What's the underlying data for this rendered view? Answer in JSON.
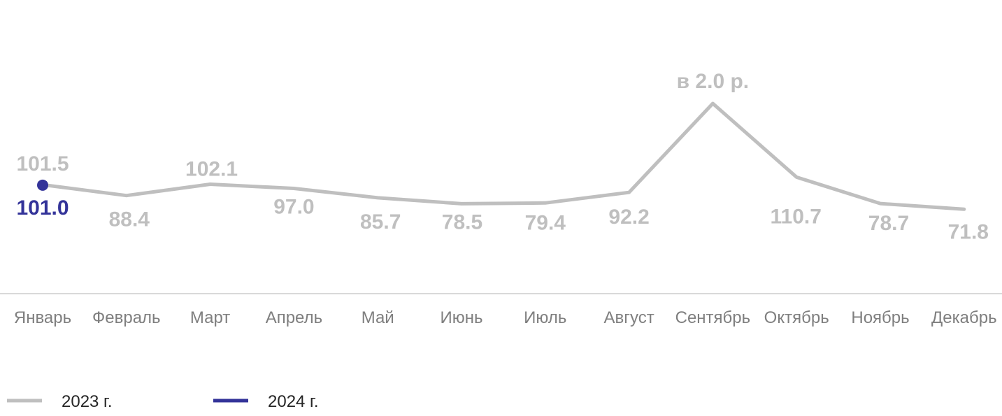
{
  "chart_data": {
    "type": "line",
    "title": "",
    "xlabel": "",
    "ylabel": "",
    "categories": [
      "Январь",
      "Февраль",
      "Март",
      "Апрель",
      "Май",
      "Июнь",
      "Июль",
      "Август",
      "Сентябрь",
      "Октябрь",
      "Ноябрь",
      "Декабрь"
    ],
    "series": [
      {
        "name": "2023 г.",
        "color": "#bfbfbf",
        "values": [
          101.5,
          88.4,
          102.1,
          97.0,
          85.7,
          78.5,
          79.4,
          92.2,
          200.0,
          110.7,
          78.7,
          71.8
        ],
        "labels": [
          "101.5",
          "88.4",
          "102.1",
          "97.0",
          "85.7",
          "78.5",
          "79.4",
          "92.2",
          "в 2.0 р.",
          "110.7",
          "78.7",
          "71.8"
        ]
      },
      {
        "name": "2024 г.",
        "color": "#333399",
        "values": [
          101.0,
          null,
          null,
          null,
          null,
          null,
          null,
          null,
          null,
          null,
          null,
          null
        ],
        "labels": [
          "101.0",
          null,
          null,
          null,
          null,
          null,
          null,
          null,
          null,
          null,
          null,
          null
        ]
      }
    ],
    "ylim": [
      40,
      210
    ],
    "grid": false,
    "legend": "bottom-left"
  }
}
